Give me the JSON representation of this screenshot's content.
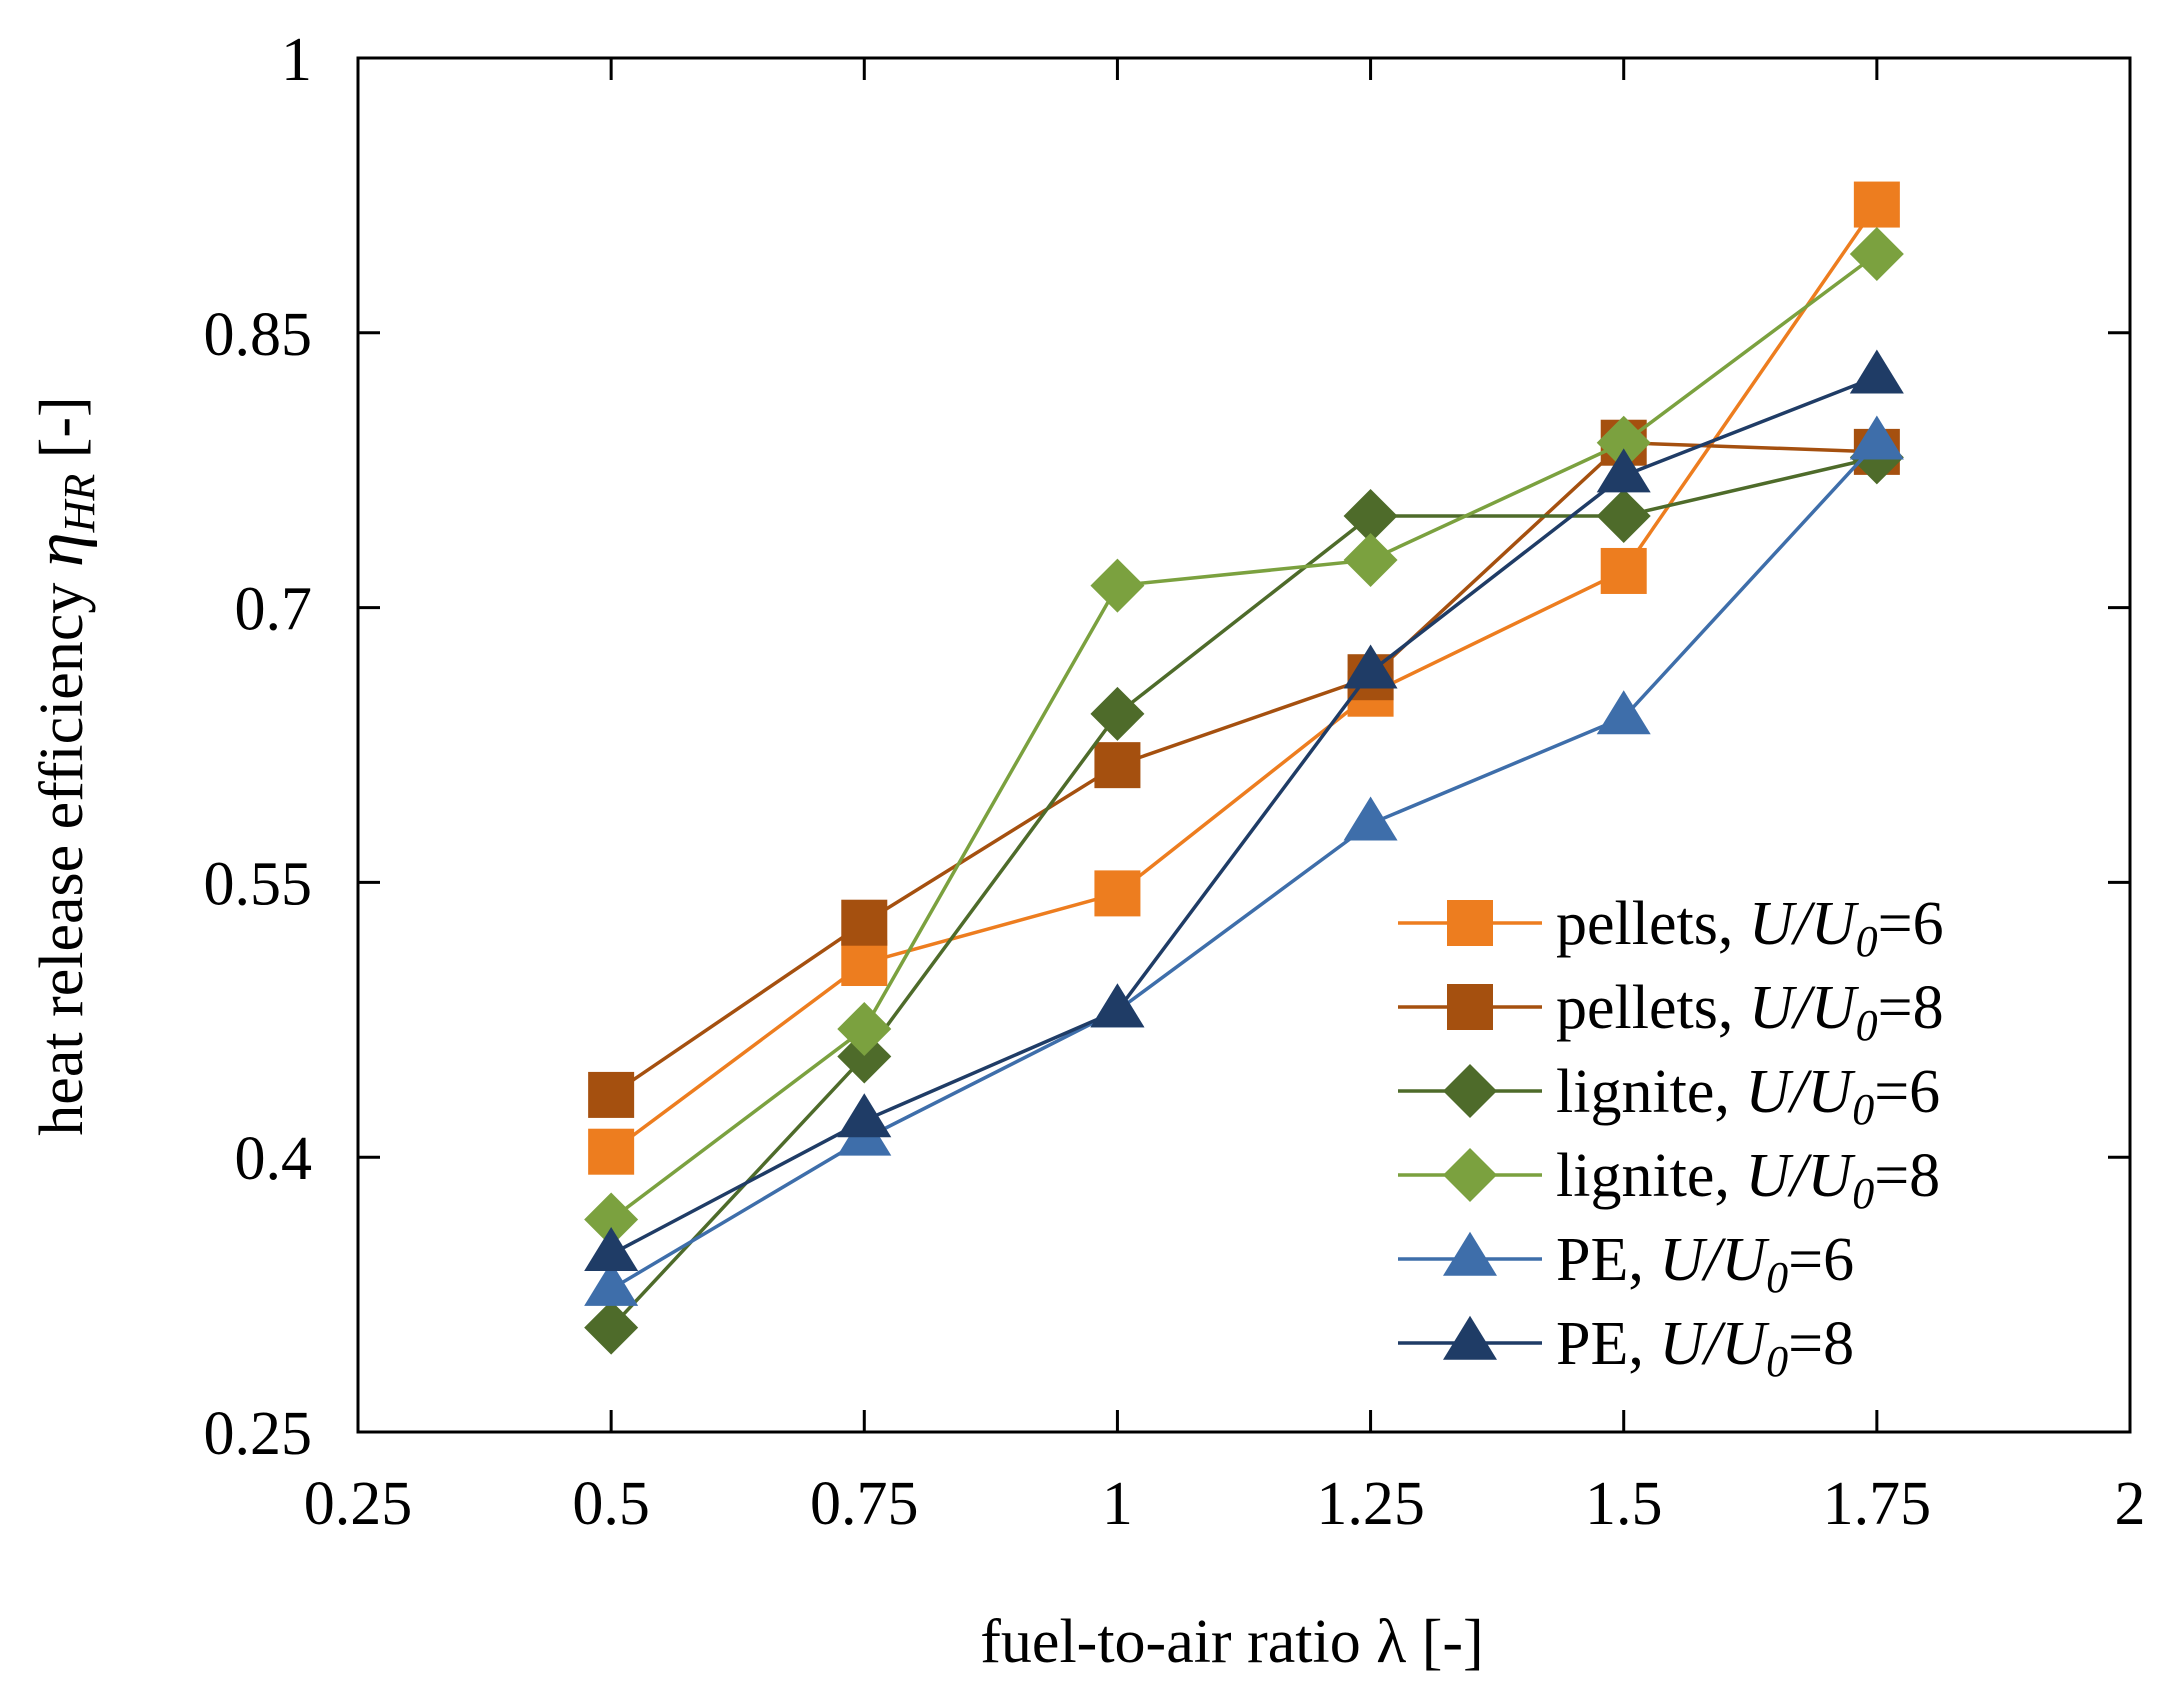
{
  "chart_data": {
    "type": "line",
    "xlabel": "fuel-to-air ratio λ [-]",
    "ylabel_prefix": "heat release efficiency ",
    "ylabel_symbol": "η",
    "ylabel_subscript": "HR",
    "ylabel_suffix": " [-]",
    "xlim": [
      0.25,
      2
    ],
    "ylim": [
      0.25,
      1
    ],
    "xticks": [
      0.25,
      0.5,
      0.75,
      1,
      1.25,
      1.5,
      1.75,
      2
    ],
    "xtick_labels": [
      "0.25",
      "0.5",
      "0.75",
      "1",
      "1.25",
      "1.5",
      "1.75",
      "2"
    ],
    "yticks": [
      0.25,
      0.4,
      0.55,
      0.7,
      0.85,
      1
    ],
    "ytick_labels": [
      "0.25",
      "0.4",
      "0.55",
      "0.7",
      "0.85",
      "1"
    ],
    "grid": false,
    "legend_position": "bottom-right",
    "x": [
      0.5,
      0.75,
      1,
      1.25,
      1.5,
      1.75
    ],
    "series": [
      {
        "name": "pellets, ",
        "name_math": "U/U",
        "name_sub": "0",
        "name_value": "=6",
        "marker": "square",
        "color": "#ED7D1F",
        "values": [
          0.403,
          0.506,
          0.544,
          0.653,
          0.72,
          0.92
        ]
      },
      {
        "name": "pellets, ",
        "name_math": "U/U",
        "name_sub": "0",
        "name_value": "=8",
        "marker": "square",
        "color": "#A5500F",
        "values": [
          0.434,
          0.528,
          0.614,
          0.662,
          0.79,
          0.785
        ]
      },
      {
        "name": "lignite, ",
        "name_math": "U/U",
        "name_sub": "0",
        "name_value": "=6",
        "marker": "diamond",
        "color": "#4E6B2A",
        "values": [
          0.307,
          0.455,
          0.642,
          0.75,
          0.75,
          0.782
        ]
      },
      {
        "name": "lignite, ",
        "name_math": "U/U",
        "name_sub": "0",
        "name_value": "=8",
        "marker": "diamond",
        "color": "#7BA13F",
        "values": [
          0.366,
          0.47,
          0.712,
          0.726,
          0.79,
          0.893
        ]
      },
      {
        "name": "PE, ",
        "name_math": "U/U",
        "name_sub": "0",
        "name_value": "=6",
        "marker": "triangle",
        "color": "#3E6EAA",
        "values": [
          0.328,
          0.41,
          0.48,
          0.582,
          0.64,
          0.79
        ]
      },
      {
        "name": "PE, ",
        "name_math": "U/U",
        "name_sub": "0",
        "name_value": "=8",
        "marker": "triangle",
        "color": "#1F3C66",
        "values": [
          0.347,
          0.42,
          0.48,
          0.665,
          0.772,
          0.826
        ]
      }
    ]
  }
}
